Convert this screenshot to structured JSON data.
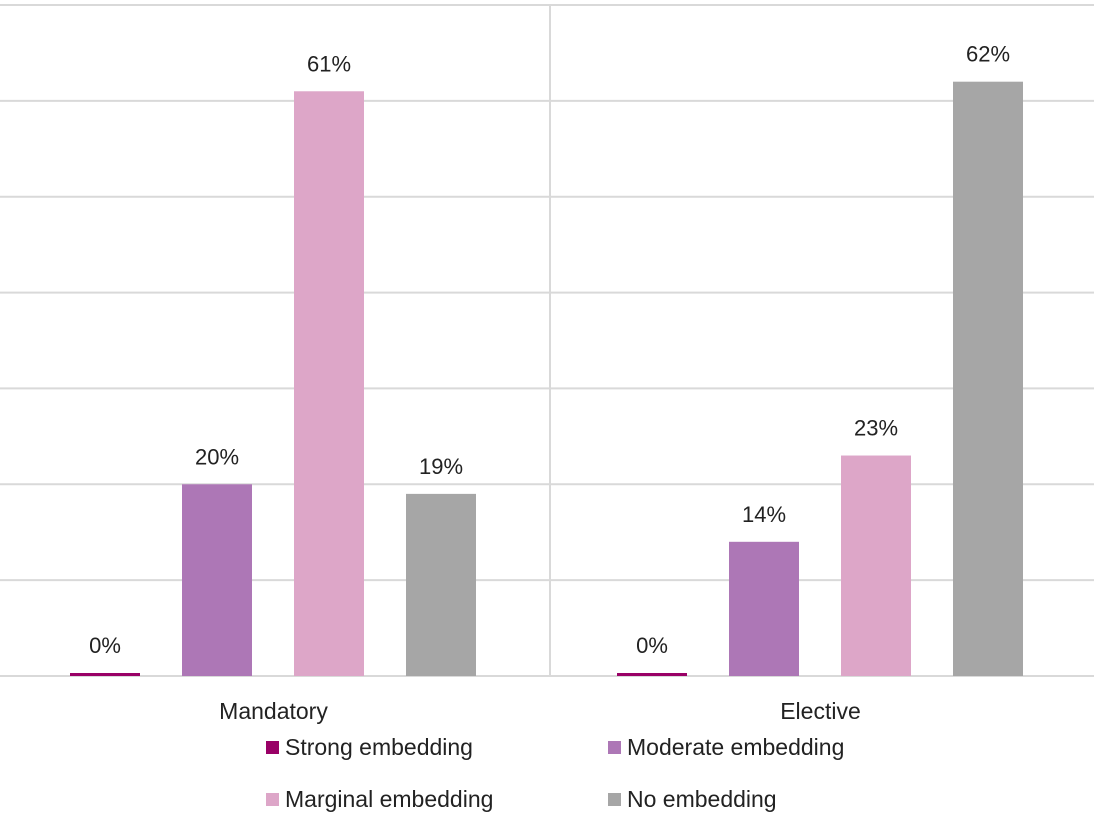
{
  "chart_data": {
    "type": "bar",
    "categories": [
      "Mandatory",
      "Elective"
    ],
    "series": [
      {
        "name": "Strong embedding",
        "values": [
          0,
          0
        ],
        "labels": [
          "0%",
          "0%"
        ],
        "color": "#990066"
      },
      {
        "name": "Moderate embedding",
        "values": [
          20,
          14
        ],
        "labels": [
          "20%",
          "14%"
        ],
        "color": "#AD77B6"
      },
      {
        "name": "Marginal embedding",
        "values": [
          61,
          23
        ],
        "labels": [
          "61%",
          "23%"
        ],
        "color": "#DDA6C8"
      },
      {
        "name": "No embedding",
        "values": [
          19,
          62
        ],
        "labels": [
          "19%",
          "62%"
        ],
        "color": "#A6A6A6"
      }
    ],
    "ylim": [
      0,
      70
    ],
    "grid": true,
    "legend_position": "bottom",
    "title": "",
    "xlabel": "",
    "ylabel": ""
  }
}
